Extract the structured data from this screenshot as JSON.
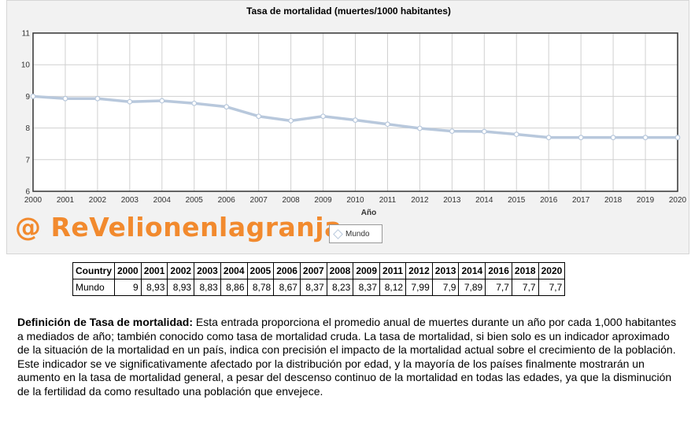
{
  "chart_data": {
    "type": "line",
    "title": "Tasa de mortalidad (muertes/1000 habitantes)",
    "xlabel": "Año",
    "ylabel": "",
    "ylim": [
      6,
      11
    ],
    "yticks": [
      6,
      7,
      8,
      9,
      10,
      11
    ],
    "x": [
      "2000",
      "2001",
      "2002",
      "2003",
      "2004",
      "2005",
      "2006",
      "2007",
      "2008",
      "2009",
      "2010",
      "2011",
      "2012",
      "2013",
      "2014",
      "2015",
      "2016",
      "2017",
      "2018",
      "2019",
      "2020"
    ],
    "series": [
      {
        "name": "Mundo",
        "values": [
          9,
          8.93,
          8.93,
          8.83,
          8.86,
          8.78,
          8.67,
          8.37,
          8.23,
          8.37,
          8.25,
          8.12,
          7.99,
          7.9,
          7.89,
          7.8,
          7.7,
          7.7,
          7.7,
          7.7,
          7.7
        ],
        "color": "#b8c8dc"
      }
    ],
    "grid": true,
    "legend": "bottom-center"
  },
  "watermark": "@ ReVelionenlagranja",
  "table": {
    "header_label": "Country",
    "years": [
      "2000",
      "2001",
      "2002",
      "2003",
      "2004",
      "2005",
      "2006",
      "2007",
      "2008",
      "2009",
      "2011",
      "2012",
      "2013",
      "2014",
      "2016",
      "2018",
      "2020"
    ],
    "row_name": "Mundo",
    "values": [
      "9",
      "8,93",
      "8,93",
      "8,83",
      "8,86",
      "8,78",
      "8,67",
      "8,37",
      "8,23",
      "8,37",
      "8,12",
      "7,99",
      "7,9",
      "7,89",
      "7,7",
      "7,7",
      "7,7"
    ]
  },
  "definition": {
    "term": "Definición de Tasa de mortalidad:",
    "text": " Esta entrada proporciona el promedio anual de muertes durante un año por cada 1,000 habitantes a mediados de año; también conocido como tasa de mortalidad cruda. La tasa de mortalidad, si bien solo es un indicador aproximado de la situación de la mortalidad en un país, indica con precisión el impacto de la mortalidad actual sobre el crecimiento de la población. Este indicador se ve significativamente afectado por la distribución por edad, y la mayoría de los países finalmente mostrarán un aumento en la tasa de mortalidad general, a pesar del descenso continuo de la mortalidad en todas las edades, ya que la disminución de la fertilidad da como resultado una población que envejece."
  }
}
